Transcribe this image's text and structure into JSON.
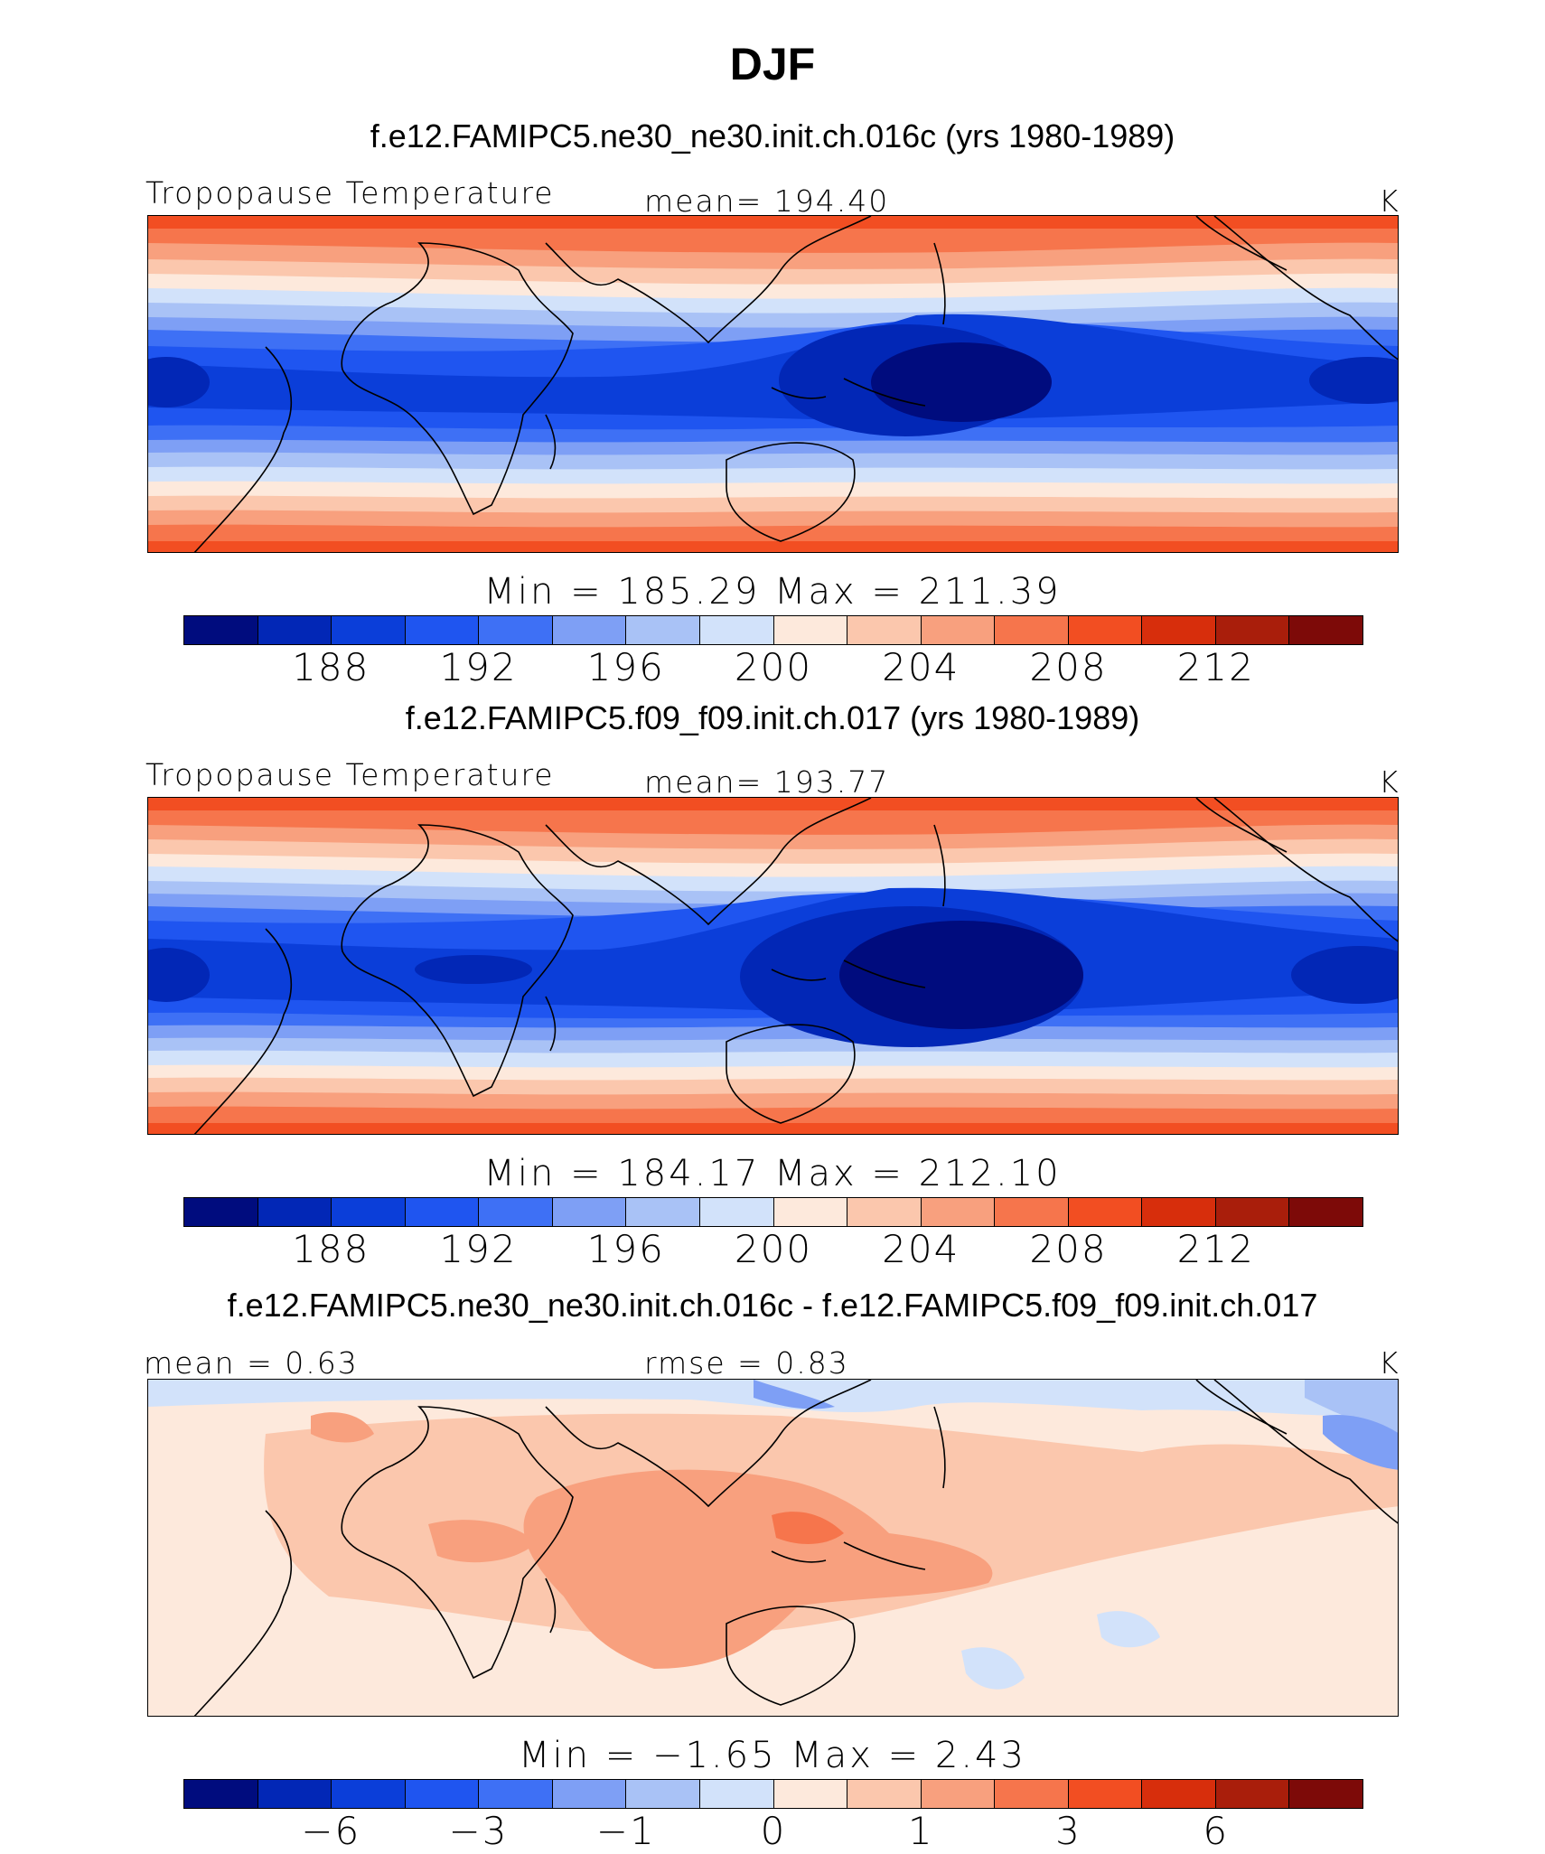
{
  "chart_data": {
    "type": "heatmap",
    "title": "DJF",
    "colors": [
      "#000c7e",
      "#0227b6",
      "#0b3ed9",
      "#1f55f0",
      "#3e70f5",
      "#7e9ff5",
      "#a9c2f6",
      "#d2e2fa",
      "#fde9dc",
      "#fbc7ad",
      "#f8a07e",
      "#f6754c",
      "#f24e22",
      "#d72e0c",
      "#a91e0b",
      "#7d0a08"
    ],
    "panels": [
      {
        "case": "f.e12.FAMIPC5.ne30_ne30.init.ch.016c (yrs 1980-1989)",
        "left_label": "Tropopause Temperature",
        "center_label": "mean=  194.40",
        "units": "K",
        "minmax": "Min  =  185.29  Max  =  211.39",
        "ticks": [
          "188",
          "192",
          "196",
          "200",
          "204",
          "208",
          "212"
        ]
      },
      {
        "case": "f.e12.FAMIPC5.f09_f09.init.ch.017 (yrs 1980-1989)",
        "left_label": "Tropopause Temperature",
        "center_label": "mean=  193.77",
        "units": "K",
        "minmax": "Min  =  184.17  Max  =  212.10",
        "ticks": [
          "188",
          "192",
          "196",
          "200",
          "204",
          "208",
          "212"
        ]
      },
      {
        "case": "f.e12.FAMIPC5.ne30_ne30.init.ch.016c - f.e12.FAMIPC5.f09_f09.init.ch.017",
        "left_label": "mean  =     0.63",
        "center_label": "rmse  =     0.83",
        "units": "K",
        "minmax": "Min  =    −1.65  Max  =      2.43",
        "ticks": [
          "−6",
          "−3",
          "−1",
          "0",
          "1",
          "3",
          "6"
        ]
      }
    ]
  }
}
